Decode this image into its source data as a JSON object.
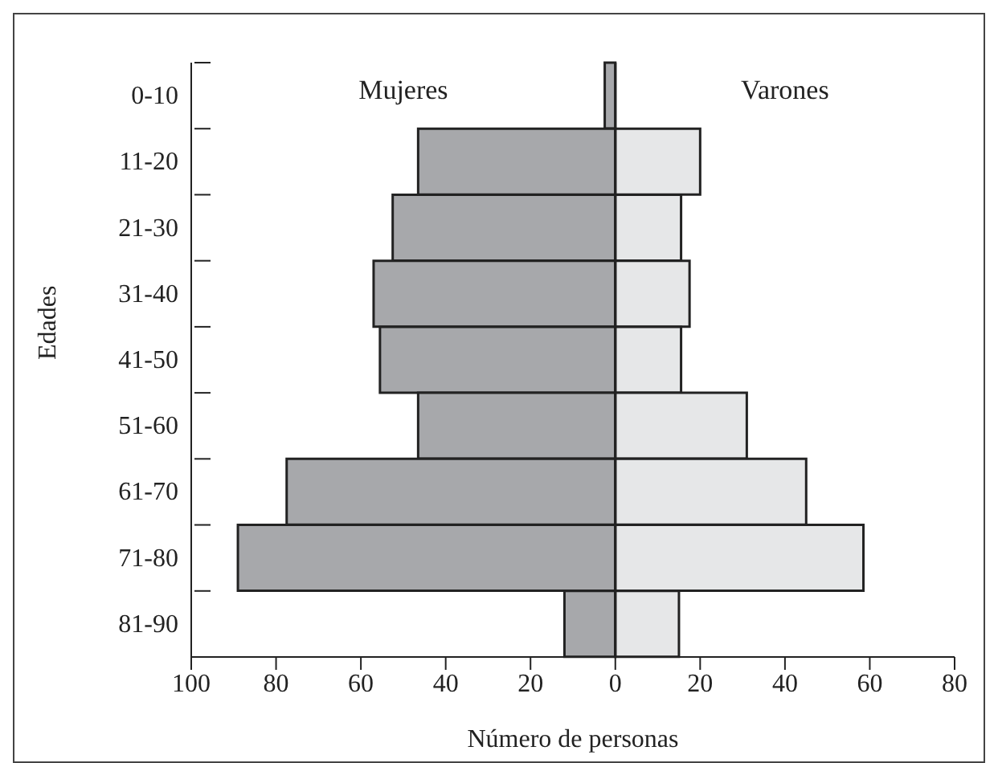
{
  "chart_data": {
    "type": "bar",
    "orientation": "horizontal",
    "stacked": true,
    "categories": [
      "0-10",
      "11-20",
      "21-30",
      "31-40",
      "41-50",
      "51-60",
      "61-70",
      "71-80",
      "81-90"
    ],
    "series": [
      {
        "name": "Mujeres",
        "color": "#a7a8ab",
        "values": [
          -2.5,
          -46.5,
          -52.5,
          -57,
          -55.5,
          -46.5,
          -77.5,
          -89,
          -12
        ]
      },
      {
        "name": "Varones",
        "color": "#e6e7e8",
        "values": [
          0,
          20,
          15.5,
          17.5,
          15.5,
          31,
          45,
          58.5,
          15
        ]
      }
    ],
    "xlabel": "Número de personas",
    "ylabel": "Edades",
    "xlim": [
      -100,
      80
    ],
    "xticks": [
      {
        "value": -100,
        "label": "100"
      },
      {
        "value": -80,
        "label": "80"
      },
      {
        "value": -60,
        "label": "60"
      },
      {
        "value": -40,
        "label": "40"
      },
      {
        "value": -20,
        "label": "20"
      },
      0,
      20,
      40,
      60,
      80
    ],
    "legend": false
  }
}
